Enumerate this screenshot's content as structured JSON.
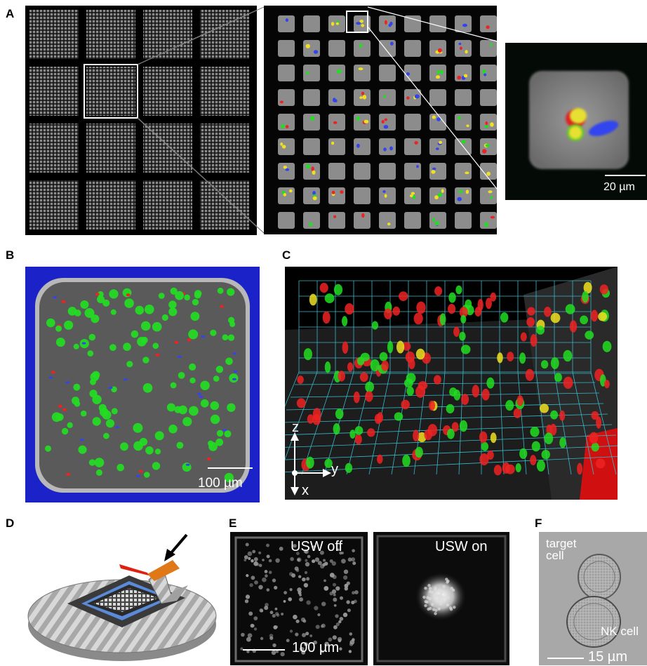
{
  "panel_labels": {
    "a": "A",
    "b": "B",
    "c": "C",
    "d": "D",
    "e": "E",
    "f": "F"
  },
  "panel_a": {
    "scale_bar": "20 µm"
  },
  "panel_b": {
    "scale_bar": "100 µm"
  },
  "panel_c": {
    "axis_z": "z",
    "axis_y": "y",
    "axis_x": "x"
  },
  "panel_e": {
    "left_title": "USW off",
    "right_title": "USW on",
    "scale_bar": "100 µm"
  },
  "panel_f": {
    "label_target_line1": "target",
    "label_target_line2": "cell",
    "label_nk": "NK cell",
    "scale_bar": "15 µm"
  },
  "colors": {
    "green_cell": "#22dd22",
    "red_cell": "#ee2222",
    "blue_cell": "#3344ee",
    "yellow_cell": "#f0e020",
    "blue_background": "#1a22c8"
  }
}
